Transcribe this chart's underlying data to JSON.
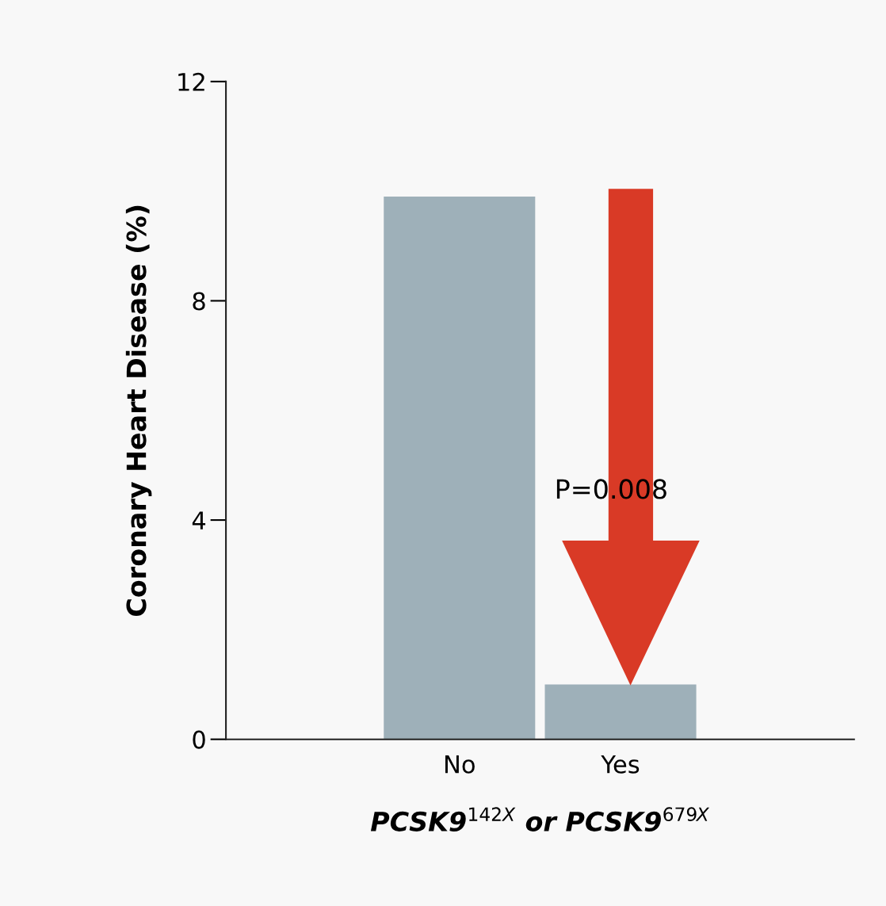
{
  "chart_data": {
    "type": "bar",
    "xlabel": "PCSK9$^{142X}$ or PCSK9$^{679X}$",
    "ylabel": "Coronary Heart Disease (%)",
    "categories": [
      "No",
      "Yes"
    ],
    "values": [
      9.9,
      1.0
    ],
    "color": "#9eb0b9",
    "ylim": [
      0,
      12
    ],
    "yticks": [
      0,
      4,
      8,
      12
    ],
    "grid": false,
    "legend": false,
    "annotations": [
      "P=0.008"
    ]
  }
}
